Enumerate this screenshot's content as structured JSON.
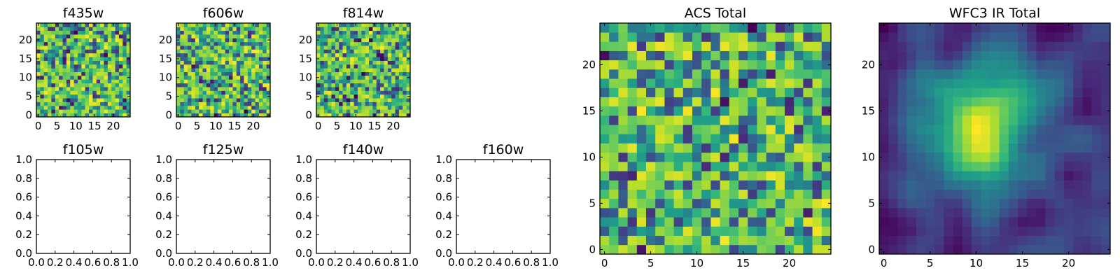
{
  "chart_data": [
    {
      "id": "f435w",
      "type": "heatmap",
      "title": "f435w",
      "xlim": [
        -0.5,
        24.5
      ],
      "ylim": [
        -0.5,
        24.5
      ],
      "xticks": [
        0,
        5,
        10,
        15,
        20
      ],
      "xtick_labels": [
        "0",
        "5",
        "10",
        "15",
        "20"
      ],
      "yticks": [
        0,
        5,
        10,
        15,
        20
      ],
      "ytick_labels": [
        "0",
        "5",
        "10",
        "15",
        "20"
      ],
      "grid_size": 25,
      "seed": 11,
      "smooth": 0,
      "blob": null,
      "colormap": "viridis"
    },
    {
      "id": "f606w",
      "type": "heatmap",
      "title": "f606w",
      "xlim": [
        -0.5,
        24.5
      ],
      "ylim": [
        -0.5,
        24.5
      ],
      "xticks": [
        0,
        5,
        10,
        15,
        20
      ],
      "xtick_labels": [
        "0",
        "5",
        "10",
        "15",
        "20"
      ],
      "yticks": [
        0,
        5,
        10,
        15,
        20
      ],
      "ytick_labels": [
        "0",
        "5",
        "10",
        "15",
        "20"
      ],
      "grid_size": 25,
      "seed": 23,
      "smooth": 0,
      "blob": null,
      "colormap": "viridis"
    },
    {
      "id": "f814w",
      "type": "heatmap",
      "title": "f814w",
      "xlim": [
        -0.5,
        24.5
      ],
      "ylim": [
        -0.5,
        24.5
      ],
      "xticks": [
        0,
        5,
        10,
        15,
        20
      ],
      "xtick_labels": [
        "0",
        "5",
        "10",
        "15",
        "20"
      ],
      "yticks": [
        0,
        5,
        10,
        15,
        20
      ],
      "ytick_labels": [
        "0",
        "5",
        "10",
        "15",
        "20"
      ],
      "grid_size": 25,
      "seed": 37,
      "smooth": 0,
      "blob": null,
      "colormap": "viridis"
    },
    {
      "id": "f105w",
      "type": "empty",
      "title": "f105w",
      "xlim": [
        0,
        1
      ],
      "ylim": [
        0,
        1
      ],
      "xticks": [
        0,
        0.2,
        0.4,
        0.6,
        0.8,
        1.0
      ],
      "xtick_labels": [
        "0.0",
        "0.2",
        "0.4",
        "0.6",
        "0.8",
        "1.0"
      ],
      "yticks": [
        0,
        0.2,
        0.4,
        0.6,
        0.8,
        1.0
      ],
      "ytick_labels": [
        "0.0",
        "0.2",
        "0.4",
        "0.6",
        "0.8",
        "1.0"
      ]
    },
    {
      "id": "f125w",
      "type": "empty",
      "title": "f125w",
      "xlim": [
        0,
        1
      ],
      "ylim": [
        0,
        1
      ],
      "xticks": [
        0,
        0.2,
        0.4,
        0.6,
        0.8,
        1.0
      ],
      "xtick_labels": [
        "0.0",
        "0.2",
        "0.4",
        "0.6",
        "0.8",
        "1.0"
      ],
      "yticks": [
        0,
        0.2,
        0.4,
        0.6,
        0.8,
        1.0
      ],
      "ytick_labels": [
        "0.0",
        "0.2",
        "0.4",
        "0.6",
        "0.8",
        "1.0"
      ]
    },
    {
      "id": "f140w",
      "type": "empty",
      "title": "f140w",
      "xlim": [
        0,
        1
      ],
      "ylim": [
        0,
        1
      ],
      "xticks": [
        0,
        0.2,
        0.4,
        0.6,
        0.8,
        1.0
      ],
      "xtick_labels": [
        "0.0",
        "0.2",
        "0.4",
        "0.6",
        "0.8",
        "1.0"
      ],
      "yticks": [
        0,
        0.2,
        0.4,
        0.6,
        0.8,
        1.0
      ],
      "ytick_labels": [
        "0.0",
        "0.2",
        "0.4",
        "0.6",
        "0.8",
        "1.0"
      ]
    },
    {
      "id": "f160w",
      "type": "empty",
      "title": "f160w",
      "xlim": [
        0,
        1
      ],
      "ylim": [
        0,
        1
      ],
      "xticks": [
        0,
        0.2,
        0.4,
        0.6,
        0.8,
        1.0
      ],
      "xtick_labels": [
        "0.0",
        "0.2",
        "0.4",
        "0.6",
        "0.8",
        "1.0"
      ],
      "yticks": [
        0,
        0.2,
        0.4,
        0.6,
        0.8,
        1.0
      ],
      "ytick_labels": [
        "0.0",
        "0.2",
        "0.4",
        "0.6",
        "0.8",
        "1.0"
      ]
    },
    {
      "id": "acs_total",
      "type": "heatmap",
      "title": "ACS Total",
      "xlim": [
        -0.5,
        24.5
      ],
      "ylim": [
        -0.5,
        24.5
      ],
      "xticks": [
        0,
        5,
        10,
        15,
        20
      ],
      "xtick_labels": [
        "0",
        "5",
        "10",
        "15",
        "20"
      ],
      "yticks": [
        0,
        5,
        10,
        15,
        20
      ],
      "ytick_labels": [
        "0",
        "5",
        "10",
        "15",
        "20"
      ],
      "grid_size": 25,
      "seed": 59,
      "smooth": 0,
      "blob": null,
      "colormap": "viridis"
    },
    {
      "id": "wfc3_ir_total",
      "type": "heatmap",
      "title": "WFC3 IR Total",
      "xlim": [
        -0.5,
        24.5
      ],
      "ylim": [
        -0.5,
        24.5
      ],
      "xticks": [
        0,
        5,
        10,
        15,
        20
      ],
      "xtick_labels": [
        "0",
        "5",
        "10",
        "15",
        "20"
      ],
      "yticks": [
        0,
        5,
        10,
        15,
        20
      ],
      "ytick_labels": [
        "0",
        "5",
        "10",
        "15",
        "20"
      ],
      "grid_size": 25,
      "seed": 71,
      "smooth": 2,
      "blob": {
        "cx": 11,
        "cy": 13,
        "sigma": 5,
        "amp": 0.55
      },
      "colormap": "viridis"
    }
  ]
}
